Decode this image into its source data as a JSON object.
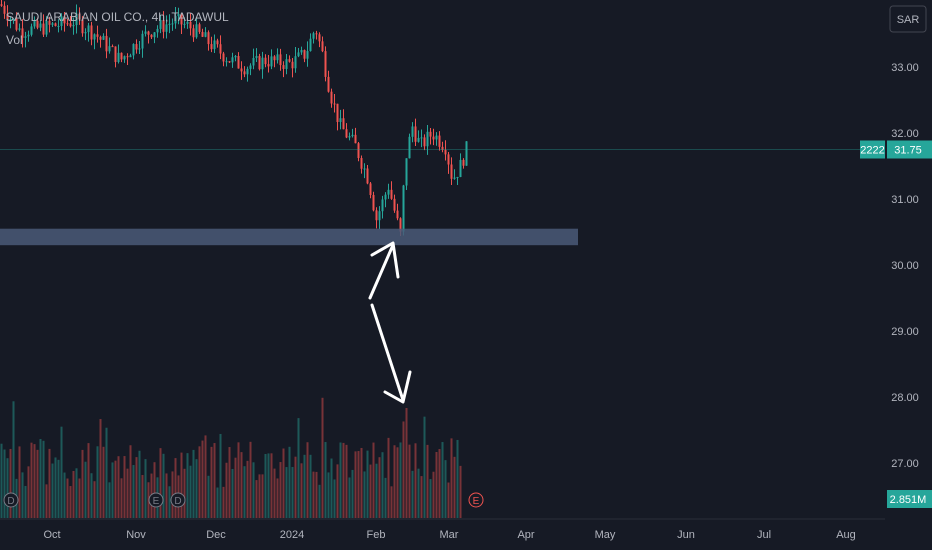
{
  "header": {
    "title": "SAUDI ARABIAN OIL CO., 4h, TADAWUL",
    "vol_label": "Vol"
  },
  "currency": "SAR",
  "ticker": "2222",
  "last_price": "31.75",
  "last_volume": "2.851M",
  "event_markers": [
    "D",
    "E",
    "D",
    "E"
  ],
  "colors": {
    "background": "#161a25",
    "up": "#26a69a",
    "down": "#ef5350",
    "zone": "#4a5b78",
    "axis_text": "#b2b5be",
    "price_line": "#26a69a"
  },
  "chart_data": {
    "type": "candlestick",
    "title": "SAUDI ARABIAN OIL CO., 4h, TADAWUL",
    "price_axis": {
      "unit": "SAR",
      "ticks": [
        "33.00",
        "32.00",
        "31.00",
        "30.00",
        "29.00",
        "28.00",
        "27.00"
      ],
      "range": [
        26.7,
        34.0
      ]
    },
    "time_axis": {
      "ticks": [
        "Oct",
        "Nov",
        "Dec",
        "2024",
        "Feb",
        "Mar",
        "Apr",
        "May",
        "Jun",
        "Jul",
        "Aug"
      ]
    },
    "price_path": [
      [
        "Sep",
        33.9
      ],
      [
        "Oct",
        33.5
      ],
      [
        "mid-Oct",
        33.6
      ],
      [
        "Nov",
        33.0
      ],
      [
        "mid-Nov",
        33.5
      ],
      [
        "Dec",
        33.2
      ],
      [
        "mid-Dec",
        33.0
      ],
      [
        "2024",
        33.1
      ],
      [
        "early-Jan",
        33.6
      ],
      [
        "mid-Jan",
        32.0
      ],
      [
        "late-Jan",
        31.3
      ],
      [
        "Feb",
        31.0
      ],
      [
        "Feb-lo",
        30.45
      ],
      [
        "mid-Feb",
        31.9
      ],
      [
        "late-Feb",
        32.1
      ],
      [
        "Mar",
        31.3
      ],
      [
        "now",
        31.75
      ]
    ],
    "support_zone": {
      "low": 30.3,
      "high": 30.55
    },
    "volume": {
      "last": "2.851M"
    }
  }
}
